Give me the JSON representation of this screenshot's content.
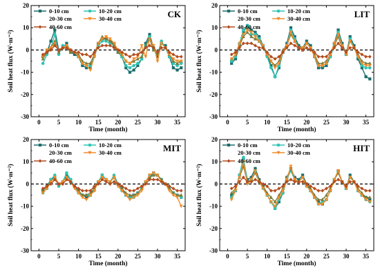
{
  "chart_data": [
    {
      "type": "line",
      "title": "CK",
      "xlabel": "Time (month)",
      "ylabel": "Soil heat flux (W·m⁻²)",
      "xlim": [
        -2,
        37
      ],
      "ylim": [
        -30,
        20
      ],
      "xticks": [
        0,
        5,
        10,
        15,
        20,
        25,
        30,
        35
      ],
      "yticks": [
        -30,
        -20,
        -10,
        0,
        10,
        20
      ],
      "x": [
        1,
        2,
        3,
        4,
        5,
        6,
        7,
        8,
        9,
        10,
        11,
        12,
        13,
        14,
        15,
        16,
        17,
        18,
        19,
        20,
        21,
        22,
        23,
        24,
        25,
        26,
        27,
        28,
        29,
        30,
        31,
        32,
        33,
        34,
        35,
        36
      ],
      "series": [
        {
          "name": "0-10 cm",
          "values": [
            -3,
            -1,
            4,
            9,
            0,
            1,
            3,
            -1,
            -2,
            -3,
            -7,
            -8,
            -8,
            -2,
            3,
            5,
            5,
            4,
            3,
            -1,
            -3,
            -8,
            -10,
            -9,
            -7,
            -4,
            3,
            7,
            1,
            -3,
            3,
            2,
            -3,
            -8,
            -9,
            -8
          ]
        },
        {
          "name": "10-20 cm",
          "values": [
            -6,
            -2,
            1,
            7,
            -2,
            2,
            2,
            -1,
            -1,
            -3,
            -6,
            -7,
            -7,
            -3,
            2,
            4,
            4,
            3,
            2,
            -1,
            -3,
            -7,
            -8,
            -7,
            -6,
            -4,
            2,
            6,
            0,
            -2,
            4,
            1,
            -3,
            -6,
            -7,
            -6
          ]
        },
        {
          "name": "20-30 cm",
          "values": [
            -4,
            -1,
            1,
            4,
            -1,
            1,
            1,
            -1,
            -1,
            -2,
            -5,
            -6,
            -6,
            -2,
            3,
            6,
            5,
            4,
            2,
            -1,
            -2,
            -5,
            -6,
            -5,
            -4,
            -3,
            2,
            5,
            0,
            -2,
            3,
            1,
            -2,
            -5,
            -6,
            -5
          ]
        },
        {
          "name": "30-40 cm",
          "values": [
            -3,
            0,
            1,
            3,
            0,
            1,
            2,
            0,
            -1,
            -3,
            -6,
            -7,
            -9,
            -3,
            3,
            5,
            6,
            5,
            3,
            0,
            -2,
            -5,
            -6,
            -4,
            -3,
            2,
            -3,
            5,
            2,
            -5,
            3,
            1,
            -2,
            -4,
            -5,
            -5
          ]
        },
        {
          "name": "40-60 cm",
          "values": [
            -2,
            -1,
            0,
            2,
            0,
            1,
            1,
            0,
            -1,
            -1,
            -2,
            -2,
            -3,
            -1,
            1,
            2,
            2,
            2,
            1,
            0,
            -1,
            -2,
            -3,
            -2,
            -2,
            -1,
            1,
            2,
            1,
            -1,
            1,
            1,
            -1,
            -2,
            -3,
            -3
          ]
        }
      ],
      "colors": [
        "#1b6d6b",
        "#2ec4b6",
        "#7b7b3a",
        "#f28c28",
        "#b44c1e"
      ],
      "legend": "top-left"
    },
    {
      "type": "line",
      "title": "LIT",
      "xlabel": "Time (month)",
      "ylabel": "Soil heat flux (W·m⁻²)",
      "xlim": [
        -2,
        37
      ],
      "ylim": [
        -30,
        20
      ],
      "xticks": [
        0,
        5,
        10,
        15,
        20,
        25,
        30,
        35
      ],
      "yticks": [
        -30,
        -20,
        -10,
        0,
        10,
        20
      ],
      "x": [
        1,
        2,
        3,
        4,
        5,
        6,
        7,
        8,
        9,
        10,
        11,
        12,
        13,
        14,
        15,
        16,
        17,
        18,
        19,
        20,
        21,
        22,
        23,
        24,
        25,
        26,
        27,
        28,
        29,
        30,
        31,
        32,
        33,
        34,
        35,
        36
      ],
      "series": [
        {
          "name": "0-10 cm",
          "values": [
            -6,
            -4,
            2,
            8,
            11,
            9,
            8,
            6,
            2,
            -2,
            -7,
            -12,
            -8,
            -1,
            3,
            10,
            6,
            2,
            1,
            4,
            2,
            -3,
            -8,
            -8,
            -7,
            -3,
            3,
            9,
            3,
            -2,
            6,
            2,
            -4,
            -8,
            -12,
            -13
          ]
        },
        {
          "name": "10-20 cm",
          "values": [
            -5,
            -3,
            3,
            9,
            11,
            7,
            7,
            5,
            2,
            -3,
            -8,
            -12,
            -7,
            -1,
            2,
            9,
            5,
            1,
            1,
            3,
            1,
            -3,
            -7,
            -7,
            -6,
            -3,
            2,
            8,
            2,
            -2,
            5,
            1,
            -3,
            -7,
            -8,
            -8
          ]
        },
        {
          "name": "20-30 cm",
          "values": [
            -4,
            -2,
            2,
            6,
            8,
            6,
            5,
            4,
            1,
            -2,
            -5,
            -7,
            -5,
            0,
            2,
            7,
            4,
            1,
            0,
            3,
            1,
            -2,
            -6,
            -6,
            -5,
            -2,
            2,
            6,
            1,
            -1,
            4,
            1,
            -2,
            -5,
            -6,
            -6
          ]
        },
        {
          "name": "30-40 cm",
          "values": [
            -4,
            -2,
            3,
            7,
            9,
            8,
            6,
            4,
            2,
            -2,
            -5,
            -8,
            -6,
            -1,
            2,
            8,
            4,
            1,
            1,
            3,
            1,
            -3,
            -7,
            -7,
            -6,
            -2,
            3,
            7,
            2,
            -2,
            4,
            1,
            -3,
            -6,
            -7,
            -7
          ]
        },
        {
          "name": "40-60 cm",
          "values": [
            -2,
            -1,
            1,
            3,
            3,
            3,
            2,
            1,
            1,
            -1,
            -3,
            -4,
            -3,
            -1,
            1,
            3,
            2,
            1,
            0,
            1,
            0,
            -1,
            -3,
            -3,
            -3,
            -1,
            1,
            3,
            1,
            -1,
            1,
            1,
            -1,
            -2,
            -3,
            -3
          ]
        }
      ],
      "colors": [
        "#1b6d6b",
        "#2ec4b6",
        "#7b7b3a",
        "#f28c28",
        "#b44c1e"
      ],
      "legend": "top-left"
    },
    {
      "type": "line",
      "title": "MIT",
      "xlabel": "Time (month)",
      "ylabel": "Soil heat flux (W·m⁻²)",
      "xlim": [
        -2,
        37
      ],
      "ylim": [
        -30,
        20
      ],
      "xticks": [
        0,
        5,
        10,
        15,
        20,
        25,
        30,
        35
      ],
      "yticks": [
        -30,
        -20,
        -10,
        0,
        10,
        20
      ],
      "x": [
        1,
        2,
        3,
        4,
        5,
        6,
        7,
        8,
        9,
        10,
        11,
        12,
        13,
        14,
        15,
        16,
        17,
        18,
        19,
        20,
        21,
        22,
        23,
        24,
        25,
        26,
        27,
        28,
        29,
        30,
        31,
        32,
        33,
        34,
        35,
        36
      ],
      "series": [
        {
          "name": "0-10 cm",
          "values": [
            -3,
            -1,
            2,
            3,
            0,
            1,
            4,
            2,
            -1,
            -3,
            -5,
            -6,
            -5,
            -2,
            1,
            4,
            2,
            1,
            3,
            0,
            -2,
            -5,
            -6,
            -5,
            -4,
            -2,
            1,
            3,
            5,
            4,
            2,
            0,
            -2,
            -4,
            -5,
            -6
          ]
        },
        {
          "name": "10-20 cm",
          "values": [
            -4,
            -2,
            2,
            4,
            -1,
            1,
            5,
            2,
            -1,
            -4,
            -5,
            -5,
            -5,
            -3,
            1,
            4,
            2,
            1,
            4,
            0,
            -3,
            -5,
            -6,
            -6,
            -4,
            -2,
            1,
            4,
            5,
            4,
            2,
            0,
            -2,
            -4,
            -5,
            -6
          ]
        },
        {
          "name": "20-30 cm",
          "values": [
            -3,
            -1,
            1,
            3,
            0,
            1,
            3,
            1,
            -1,
            -3,
            -5,
            -5,
            -4,
            -2,
            1,
            3,
            2,
            1,
            3,
            0,
            -2,
            -4,
            -5,
            -5,
            -4,
            -2,
            1,
            3,
            4,
            4,
            2,
            0,
            -2,
            -4,
            -5,
            -5
          ]
        },
        {
          "name": "30-40 cm",
          "values": [
            -4,
            -2,
            1,
            3,
            0,
            1,
            3,
            1,
            -2,
            -4,
            -6,
            -7,
            -5,
            -3,
            1,
            3,
            2,
            1,
            3,
            -1,
            -3,
            -5,
            -7,
            -6,
            -5,
            -3,
            1,
            4,
            5,
            4,
            1,
            0,
            -3,
            -5,
            -6,
            -10
          ]
        },
        {
          "name": "40-60 cm",
          "values": [
            -2,
            -1,
            0,
            2,
            0,
            0,
            2,
            1,
            -1,
            -2,
            -3,
            -3,
            -3,
            -1,
            0,
            2,
            1,
            0,
            1,
            0,
            -1,
            -2,
            -3,
            -3,
            -2,
            -1,
            0,
            2,
            2,
            2,
            1,
            0,
            -1,
            -2,
            -3,
            -3
          ]
        }
      ],
      "colors": [
        "#1b6d6b",
        "#2ec4b6",
        "#7b7b3a",
        "#f28c28",
        "#b44c1e"
      ],
      "legend": "top-left"
    },
    {
      "type": "line",
      "title": "HIT",
      "xlabel": "Time (month)",
      "ylabel": "Soil heat flux (W·m⁻²)",
      "xlim": [
        -2,
        37
      ],
      "ylim": [
        -30,
        20
      ],
      "xticks": [
        0,
        5,
        10,
        15,
        20,
        25,
        30,
        35
      ],
      "yticks": [
        -30,
        -20,
        -10,
        0,
        10,
        20
      ],
      "x": [
        1,
        2,
        3,
        4,
        5,
        6,
        7,
        8,
        9,
        10,
        11,
        12,
        13,
        14,
        15,
        16,
        17,
        18,
        19,
        20,
        21,
        22,
        23,
        24,
        25,
        26,
        27,
        28,
        29,
        30,
        31,
        32,
        33,
        34,
        35,
        36
      ],
      "series": [
        {
          "name": "0-10 cm",
          "values": [
            -5,
            -3,
            4,
            11,
            2,
            3,
            7,
            2,
            -1,
            -5,
            -8,
            -11,
            -8,
            -4,
            3,
            7,
            3,
            2,
            4,
            0,
            -3,
            -6,
            -8,
            -9,
            -7,
            -3,
            2,
            6,
            1,
            -2,
            4,
            1,
            -3,
            -5,
            -6,
            -7
          ]
        },
        {
          "name": "10-20 cm",
          "values": [
            -6,
            -3,
            4,
            12,
            1,
            2,
            6,
            1,
            -2,
            -5,
            -8,
            -11,
            -7,
            -4,
            2,
            6,
            2,
            1,
            3,
            -1,
            -3,
            -6,
            -9,
            -8,
            -7,
            -3,
            2,
            5,
            1,
            -2,
            3,
            1,
            -3,
            -5,
            -7,
            -8
          ]
        },
        {
          "name": "20-30 cm",
          "values": [
            -4,
            -2,
            3,
            8,
            1,
            2,
            5,
            1,
            -1,
            -4,
            -6,
            -8,
            -5,
            -2,
            3,
            7,
            2,
            1,
            3,
            0,
            -2,
            -5,
            -7,
            -7,
            -5,
            -2,
            2,
            5,
            1,
            -1,
            3,
            1,
            -2,
            -4,
            -6,
            -6
          ]
        },
        {
          "name": "30-40 cm",
          "values": [
            -7,
            -3,
            3,
            10,
            0,
            2,
            6,
            1,
            -2,
            -5,
            -8,
            -10,
            -6,
            -3,
            2,
            8,
            2,
            1,
            3,
            -1,
            -3,
            -6,
            -9,
            -9,
            -7,
            -3,
            2,
            6,
            1,
            -2,
            3,
            1,
            -3,
            -5,
            -7,
            -8
          ]
        },
        {
          "name": "40-60 cm",
          "values": [
            -2,
            -1,
            1,
            3,
            1,
            1,
            2,
            1,
            0,
            -1,
            -3,
            -3,
            -2,
            -1,
            1,
            2,
            1,
            1,
            1,
            0,
            -1,
            -2,
            -3,
            -3,
            -2,
            -1,
            1,
            2,
            1,
            -1,
            1,
            1,
            -1,
            -2,
            -3,
            -3
          ]
        }
      ],
      "colors": [
        "#1b6d6b",
        "#2ec4b6",
        "#7b7b3a",
        "#f28c28",
        "#b44c1e"
      ],
      "legend": "top-left"
    }
  ]
}
